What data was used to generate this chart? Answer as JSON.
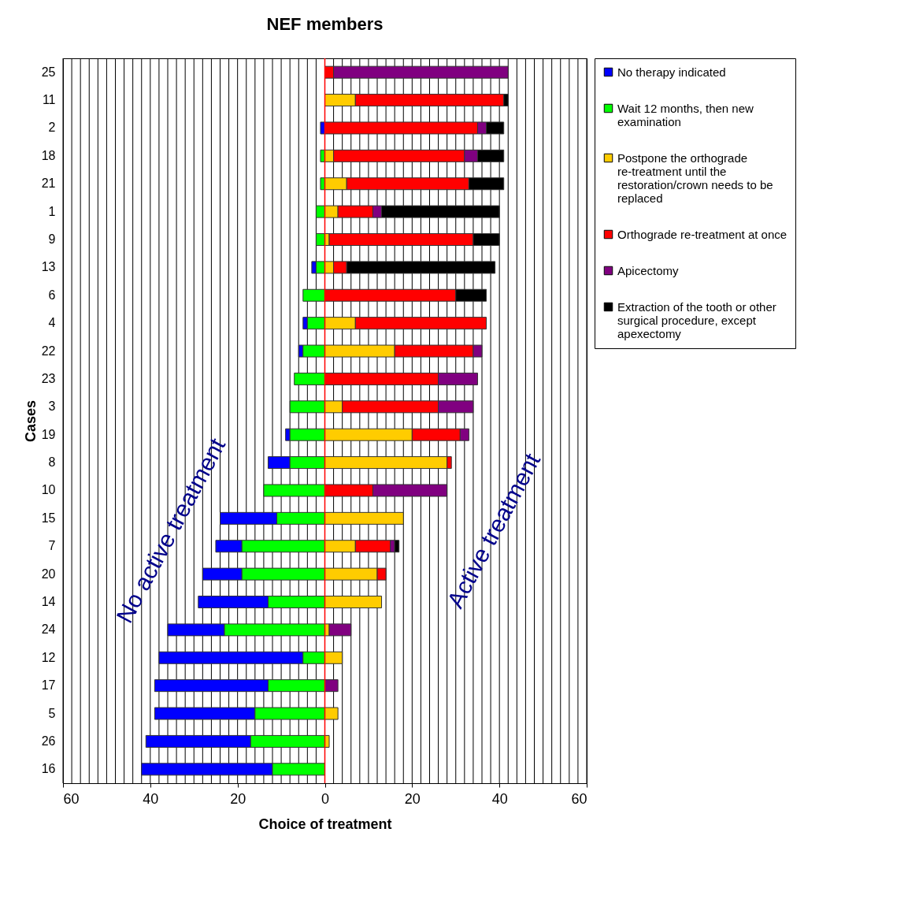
{
  "chart_data": {
    "type": "bar",
    "orientation": "horizontal",
    "stacked": true,
    "title": "NEF members",
    "xlabel": "Choice of treatment",
    "ylabel": "Cases",
    "categories": [
      "25",
      "11",
      "2",
      "18",
      "21",
      "1",
      "9",
      "13",
      "6",
      "4",
      "22",
      "23",
      "3",
      "19",
      "8",
      "10",
      "15",
      "7",
      "20",
      "14",
      "24",
      "12",
      "17",
      "5",
      "26",
      "16"
    ],
    "series": [
      {
        "name": "No therapy indicated",
        "color": "#0000ff",
        "values": [
          null,
          null,
          -1,
          null,
          null,
          null,
          null,
          -1,
          null,
          -1,
          -1,
          null,
          null,
          -1,
          -5,
          null,
          -13,
          -6,
          -9,
          -16,
          -13,
          -33,
          -26,
          -23,
          -24,
          -30
        ]
      },
      {
        "name": "Wait 12 months, then new examination",
        "color": "#00ff00",
        "values": [
          null,
          null,
          null,
          -1,
          -1,
          -2,
          -2,
          -2,
          -5,
          -4,
          -5,
          -7,
          -8,
          -8,
          -8,
          -14,
          -11,
          -19,
          -19,
          -13,
          -23,
          -5,
          -13,
          -16,
          -17,
          -12
        ]
      },
      {
        "name": "Postpone the orthograde re-treatment until the restoration/crown needs to be replaced",
        "color": "#ffcc00",
        "values": [
          null,
          7,
          null,
          2,
          5,
          3,
          1,
          2,
          null,
          7,
          16,
          null,
          4,
          20,
          28,
          null,
          18,
          7,
          12,
          13,
          1,
          4,
          null,
          3,
          1,
          null
        ]
      },
      {
        "name": "Orthograde re-treatment at once",
        "color": "#ff0000",
        "values": [
          2,
          34,
          35,
          30,
          28,
          8,
          33,
          3,
          30,
          30,
          18,
          26,
          22,
          11,
          1,
          11,
          null,
          8,
          2,
          null,
          null,
          null,
          null,
          null,
          null,
          null
        ]
      },
      {
        "name": "Apicectomy",
        "color": "#800080",
        "values": [
          40,
          null,
          2,
          3,
          null,
          2,
          null,
          null,
          null,
          null,
          2,
          9,
          8,
          2,
          null,
          17,
          null,
          1,
          null,
          null,
          5,
          null,
          3,
          null,
          null,
          null
        ]
      },
      {
        "name": "Extraction of the tooth or other surgical procedure, except apexectomy",
        "color": "#000000",
        "values": [
          null,
          1,
          4,
          6,
          8,
          27,
          6,
          34,
          7,
          null,
          null,
          null,
          null,
          null,
          null,
          null,
          null,
          1,
          null,
          null,
          null,
          null,
          null,
          null,
          null,
          null
        ]
      }
    ],
    "xlim": [
      -60,
      60
    ],
    "xticks": [
      {
        "value": -60,
        "label": "60"
      },
      {
        "value": -40,
        "label": "40"
      },
      {
        "value": -20,
        "label": "20"
      },
      0,
      20,
      40,
      60
    ],
    "grid": "x",
    "ref_lines": [
      {
        "axis": "x",
        "value": 0,
        "color": "#ff0000"
      }
    ],
    "legend": "right",
    "annotations": [
      "No active treatment",
      "Active treatment"
    ]
  }
}
